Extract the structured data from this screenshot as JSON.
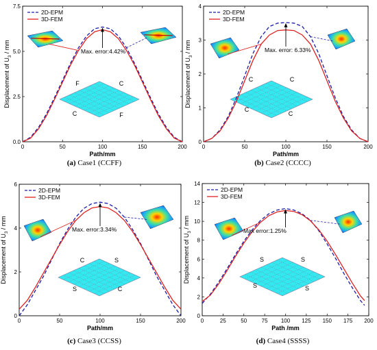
{
  "chart_data": [
    {
      "type": "line",
      "caption_letter": "(a)",
      "caption_text": "Case1 (CCFF)",
      "xlabel": "Path/mm",
      "ylabel_prefix": "Displacement of U",
      "ylabel_sub": "3",
      "ylabel_suffix": " / mm",
      "xlim": [
        0,
        200
      ],
      "ylim": [
        0,
        7.5
      ],
      "xticks": [
        0,
        50,
        100,
        150,
        200
      ],
      "yticks": [
        0.0,
        2.5,
        5.0,
        7.5
      ],
      "ytick_labels": [
        "0.0",
        "2.5",
        "5.0",
        "7.5"
      ],
      "legend_position": "top-left",
      "x": [
        0,
        10,
        20,
        30,
        40,
        50,
        60,
        70,
        80,
        90,
        100,
        110,
        120,
        130,
        140,
        150,
        160,
        170,
        180,
        190,
        200
      ],
      "series": [
        {
          "name": "2D-EPM",
          "style": "dashed",
          "color": "#1a1aa8",
          "values": [
            0,
            0.25,
            0.8,
            1.55,
            2.45,
            3.4,
            4.35,
            5.2,
            5.85,
            6.25,
            6.35,
            6.25,
            5.85,
            5.2,
            4.35,
            3.4,
            2.45,
            1.55,
            0.8,
            0.25,
            0
          ]
        },
        {
          "name": "3D-FEM",
          "style": "solid",
          "color": "#e02020",
          "values": [
            0,
            0.2,
            0.72,
            1.45,
            2.35,
            3.3,
            4.25,
            5.05,
            5.7,
            6.08,
            6.2,
            6.08,
            5.7,
            5.05,
            4.25,
            3.3,
            2.35,
            1.45,
            0.72,
            0.2,
            0
          ]
        }
      ],
      "annotation": "Max. error:4.42%",
      "plate_labels": [
        "F",
        "C",
        "C",
        "F"
      ]
    },
    {
      "type": "line",
      "caption_letter": "(b)",
      "caption_text": "Case2 (CCCC)",
      "xlabel": "Path/mm",
      "ylabel_prefix": "Displacement of U",
      "ylabel_sub": "3",
      "ylabel_suffix": " / mm",
      "xlim": [
        0,
        200
      ],
      "ylim": [
        0,
        4
      ],
      "xticks": [
        0,
        50,
        100,
        150,
        200
      ],
      "yticks": [
        0,
        1,
        2,
        3,
        4
      ],
      "ytick_labels": [
        "0",
        "1",
        "2",
        "3",
        "4"
      ],
      "legend_position": "top-left",
      "x": [
        0,
        10,
        20,
        30,
        40,
        50,
        60,
        70,
        80,
        90,
        100,
        110,
        120,
        130,
        140,
        150,
        160,
        170,
        180,
        190,
        200
      ],
      "series": [
        {
          "name": "2D-EPM",
          "style": "dashed",
          "color": "#1a1aa8",
          "values": [
            0,
            0.1,
            0.35,
            0.75,
            1.3,
            1.95,
            2.6,
            3.1,
            3.4,
            3.5,
            3.52,
            3.5,
            3.4,
            3.1,
            2.6,
            1.95,
            1.3,
            0.75,
            0.35,
            0.1,
            0
          ]
        },
        {
          "name": "3D-FEM",
          "style": "solid",
          "color": "#e02020",
          "values": [
            0,
            0.1,
            0.32,
            0.7,
            1.2,
            1.8,
            2.4,
            2.88,
            3.15,
            3.28,
            3.3,
            3.28,
            3.15,
            2.88,
            2.4,
            1.8,
            1.2,
            0.7,
            0.32,
            0.1,
            0
          ]
        }
      ],
      "annotation": "Max. error: 6.33%",
      "plate_labels": [
        "C",
        "C",
        "C",
        "C"
      ]
    },
    {
      "type": "line",
      "caption_letter": "(c)",
      "caption_text": "Case3 (CCSS)",
      "xlabel": "Path/mm",
      "ylabel_prefix": "Displacement of U",
      "ylabel_sub": "3",
      "ylabel_suffix": " / mm",
      "xlim": [
        0,
        200
      ],
      "ylim": [
        0,
        6
      ],
      "xticks": [
        0,
        50,
        100,
        150,
        200
      ],
      "yticks": [
        0,
        2,
        4,
        6
      ],
      "ytick_labels": [
        "0",
        "2",
        "4",
        "6"
      ],
      "legend_position": "top-left",
      "x": [
        0,
        10,
        20,
        30,
        40,
        50,
        60,
        70,
        80,
        90,
        100,
        110,
        120,
        130,
        140,
        150,
        160,
        170,
        180,
        190,
        200
      ],
      "series": [
        {
          "name": "2D-EPM",
          "style": "dashed",
          "color": "#1a1aa8",
          "values": [
            0,
            0.5,
            1.15,
            1.8,
            2.55,
            3.3,
            3.95,
            4.5,
            4.9,
            5.12,
            5.18,
            5.12,
            4.9,
            4.5,
            3.95,
            3.3,
            2.55,
            1.8,
            1.15,
            0.5,
            0
          ]
        },
        {
          "name": "3D-FEM",
          "style": "solid",
          "color": "#e02020",
          "values": [
            0.3,
            0.7,
            1.3,
            1.95,
            2.6,
            3.25,
            3.85,
            4.35,
            4.7,
            4.92,
            4.98,
            4.92,
            4.7,
            4.35,
            3.85,
            3.25,
            2.6,
            1.95,
            1.3,
            0.7,
            0.3
          ]
        }
      ],
      "annotation": "Max. error:3.34%",
      "plate_labels": [
        "C",
        "S",
        "S",
        "C"
      ]
    },
    {
      "type": "line",
      "caption_letter": "(d)",
      "caption_text": "Case4 (SSSS)",
      "xlabel": "Path /mm",
      "ylabel_prefix": "Displacement of U",
      "ylabel_sub": "3",
      "ylabel_suffix": " / mm",
      "xlim": [
        0,
        200
      ],
      "ylim": [
        0,
        14
      ],
      "xticks": [
        0,
        25,
        50,
        75,
        100,
        125,
        150,
        175,
        200
      ],
      "yticks": [
        0,
        2,
        4,
        6,
        8,
        10,
        12,
        14
      ],
      "ytick_labels": [
        "0",
        "2",
        "4",
        "6",
        "8",
        "10",
        "12",
        "14"
      ],
      "legend_position": "top-left",
      "x": [
        0,
        10,
        20,
        30,
        40,
        50,
        60,
        70,
        80,
        90,
        100,
        110,
        120,
        130,
        140,
        150,
        160,
        170,
        180,
        190,
        195
      ],
      "series": [
        {
          "name": "2D-EPM",
          "style": "dashed",
          "color": "#1a1aa8",
          "values": [
            1.3,
            2.3,
            3.6,
            5.0,
            6.5,
            7.9,
            9.1,
            10.1,
            10.8,
            11.2,
            11.35,
            11.2,
            10.8,
            10.1,
            9.0,
            7.6,
            6.1,
            4.5,
            3.0,
            1.6,
            1.1
          ]
        },
        {
          "name": "3D-FEM",
          "style": "solid",
          "color": "#e02020",
          "values": [
            1.5,
            2.2,
            3.4,
            4.8,
            6.3,
            7.7,
            8.9,
            9.9,
            10.6,
            11.0,
            11.15,
            11.05,
            10.7,
            10.05,
            9.1,
            7.9,
            6.5,
            5.0,
            3.5,
            2.1,
            1.6
          ]
        }
      ],
      "annotation": "Max error:1.25%",
      "plate_labels": [
        "S",
        "S",
        "S",
        "S"
      ]
    }
  ]
}
